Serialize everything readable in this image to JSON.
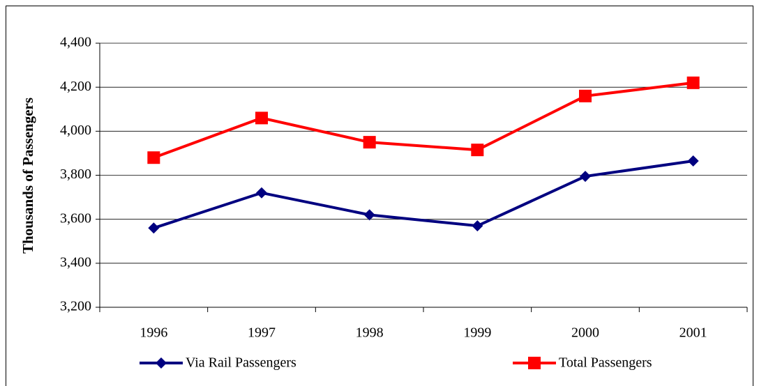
{
  "chart_data": {
    "type": "line",
    "y_label": "Thousands of Passengers",
    "categories": [
      "1996",
      "1997",
      "1998",
      "1999",
      "2000",
      "2001"
    ],
    "series": [
      {
        "name": "Via Rail Passengers",
        "color": "#000080",
        "marker": "diamond",
        "values": [
          3560,
          3720,
          3620,
          3570,
          3795,
          3865
        ]
      },
      {
        "name": "Total Passengers",
        "color": "#ff0000",
        "marker": "square",
        "values": [
          3880,
          4060,
          3950,
          3915,
          4160,
          4220
        ]
      }
    ],
    "ylim": [
      3200,
      4400
    ],
    "yticks": [
      {
        "value": 3200,
        "label": "3,200"
      },
      {
        "value": 3400,
        "label": "3,400"
      },
      {
        "value": 3600,
        "label": "3,600"
      },
      {
        "value": 3800,
        "label": "3,800"
      },
      {
        "value": 4000,
        "label": "4,000"
      },
      {
        "value": 4200,
        "label": "4,200"
      },
      {
        "value": 4400,
        "label": "4,400"
      }
    ],
    "grid": true,
    "legend": "bottom"
  }
}
